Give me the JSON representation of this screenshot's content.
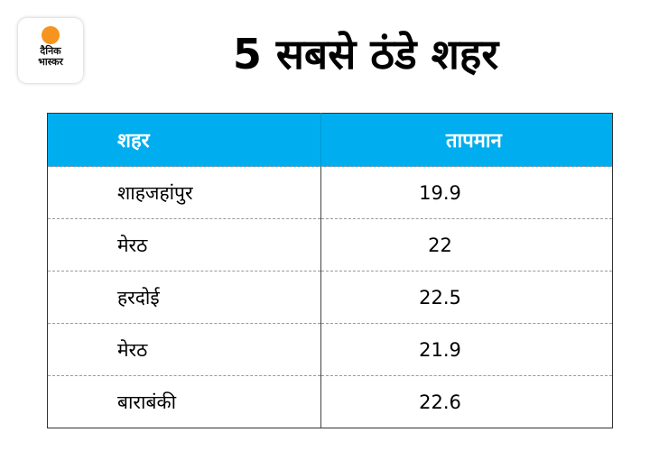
{
  "logo": {
    "line1": "दैनिक",
    "line2": "भास्कर",
    "accent": "#f7941d"
  },
  "title": "5 सबसे ठंडे शहर",
  "header_color": "#00aeef",
  "chart_data": {
    "type": "table",
    "title": "5 सबसे ठंडे शहर",
    "columns": [
      "शहर",
      "तापमान"
    ],
    "rows": [
      [
        "शाहजहांपुर",
        "19.9"
      ],
      [
        "मेरठ",
        "22"
      ],
      [
        "हरदोई",
        "22.5"
      ],
      [
        "मेरठ",
        "21.9"
      ],
      [
        "बाराबंकी",
        "22.6"
      ]
    ]
  }
}
